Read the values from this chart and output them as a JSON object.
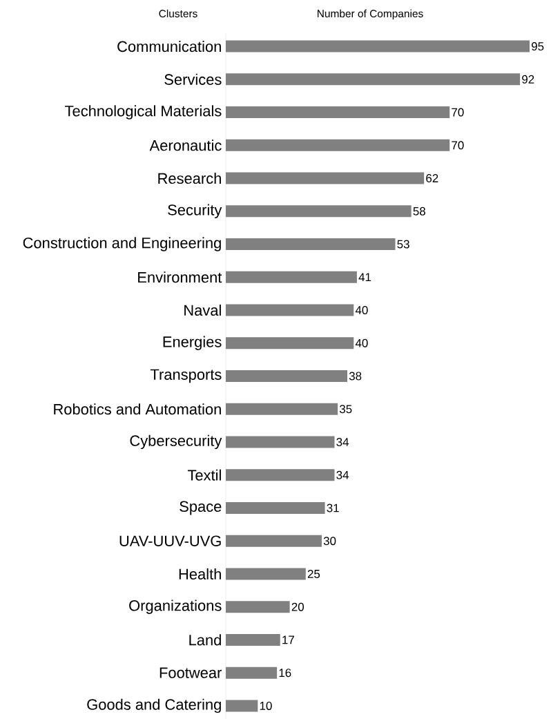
{
  "chart_data": {
    "type": "bar",
    "orientation": "horizontal",
    "xlabel": "Number of Companies",
    "ylabel": "Clusters",
    "categories": [
      "Communication",
      "Services",
      "Technological Materials",
      "Aeronautic",
      "Research",
      "Security",
      "Construction and Engineering",
      "Environment",
      "Naval",
      "Energies",
      "Transports",
      "Robotics and Automation",
      "Cybersecurity",
      "Textil",
      "Space",
      "UAV-UUV-UVG",
      "Health",
      "Organizations",
      "Land",
      "Footwear",
      "Goods and Catering"
    ],
    "values": [
      95,
      92,
      70,
      70,
      62,
      58,
      53,
      41,
      40,
      40,
      38,
      35,
      34,
      34,
      31,
      30,
      25,
      20,
      17,
      16,
      10
    ],
    "color": "#808080",
    "data_labels": true
  }
}
